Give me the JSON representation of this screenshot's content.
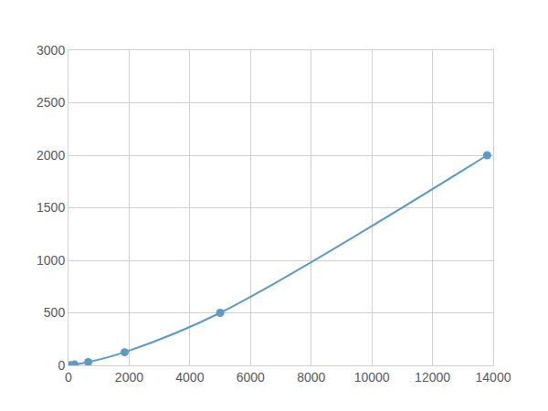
{
  "chart_data": {
    "type": "line",
    "x": [
      70,
      200,
      650,
      1850,
      5000,
      13800
    ],
    "values": [
      1.95,
      7.8,
      31.25,
      125,
      500,
      2000
    ],
    "color": "#5b9bc9",
    "marker": "circle",
    "line_style": "solid",
    "xlim": [
      0,
      14000
    ],
    "ylim": [
      0,
      3000
    ],
    "xticks": [
      0,
      2000,
      4000,
      6000,
      8000,
      10000,
      12000,
      14000
    ],
    "yticks": [
      0,
      500,
      1000,
      1500,
      2000,
      2500,
      3000
    ],
    "grid": true
  }
}
